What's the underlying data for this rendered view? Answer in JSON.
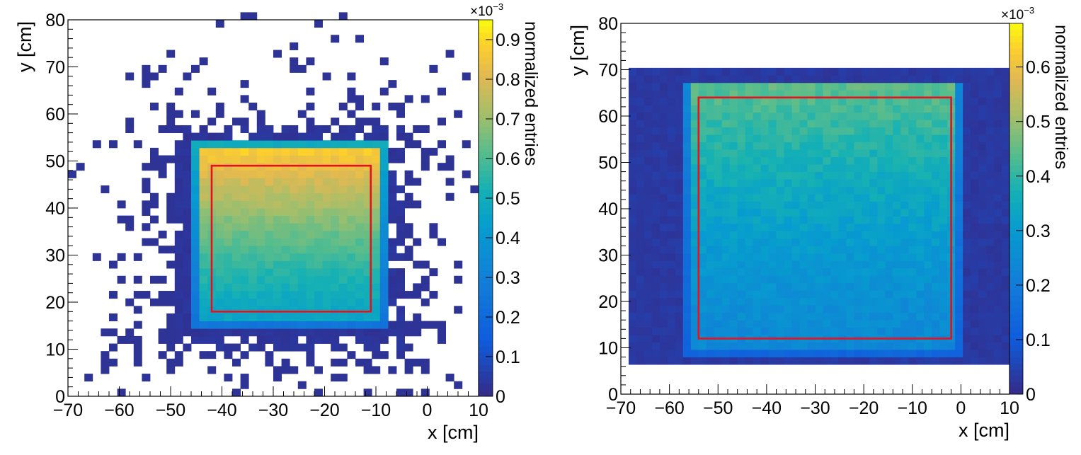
{
  "chart_data": [
    {
      "type": "heatmap",
      "xlabel": "x [cm]",
      "ylabel": "y [cm]",
      "colorbar_label": "normalized entries",
      "colorbar_exponent": "×10",
      "colorbar_exponent_power": "−3",
      "xlim": [
        -70,
        10
      ],
      "ylim": [
        0,
        80
      ],
      "zlim": [
        0,
        0.95
      ],
      "xticks": [
        "−70",
        "−60",
        "−50",
        "−40",
        "−30",
        "−20",
        "−10",
        "0",
        "10"
      ],
      "yticks": [
        "0",
        "10",
        "20",
        "30",
        "40",
        "50",
        "60",
        "70",
        "80"
      ],
      "zticks": [
        "0",
        "0.1",
        "0.2",
        "0.3",
        "0.4",
        "0.5",
        "0.6",
        "0.7",
        "0.8",
        "0.9"
      ],
      "accepted_region": {
        "x": [
          -46,
          -8
        ],
        "y": [
          14,
          54
        ],
        "z_low": 0.45,
        "z_high": 0.9
      },
      "halo_region": {
        "x": [
          -50,
          -4
        ],
        "y": [
          10,
          58
        ]
      },
      "red_box": {
        "x": [
          -42,
          -11
        ],
        "y": [
          18,
          49
        ]
      },
      "grid": false
    },
    {
      "type": "heatmap",
      "xlabel": "x [cm]",
      "ylabel": "y [cm]",
      "colorbar_label": "normalized entries",
      "colorbar_exponent": "×10",
      "colorbar_exponent_power": "−3",
      "xlim": [
        -70,
        10
      ],
      "ylim": [
        0,
        80
      ],
      "zlim": [
        0,
        0.68
      ],
      "xticks": [
        "−70",
        "−60",
        "−50",
        "−40",
        "−30",
        "−20",
        "−10",
        "0",
        "10"
      ],
      "yticks": [
        "0",
        "10",
        "20",
        "30",
        "40",
        "50",
        "60",
        "70",
        "80"
      ],
      "zticks": [
        "0",
        "0.1",
        "0.2",
        "0.3",
        "0.4",
        "0.5",
        "0.6"
      ],
      "accepted_region": {
        "x": [
          -57,
          0
        ],
        "y": [
          8,
          68
        ],
        "z_low": 0.24,
        "z_high": 0.45
      },
      "halo_region": {
        "x": [
          -69,
          10
        ],
        "y": [
          6,
          71
        ]
      },
      "red_box": {
        "x": [
          -54,
          -2
        ],
        "y": [
          12,
          64
        ]
      },
      "grid": false
    }
  ],
  "colors": {
    "frame": "#000000",
    "red_box": "#e8101a",
    "empty": "#ffffff"
  }
}
